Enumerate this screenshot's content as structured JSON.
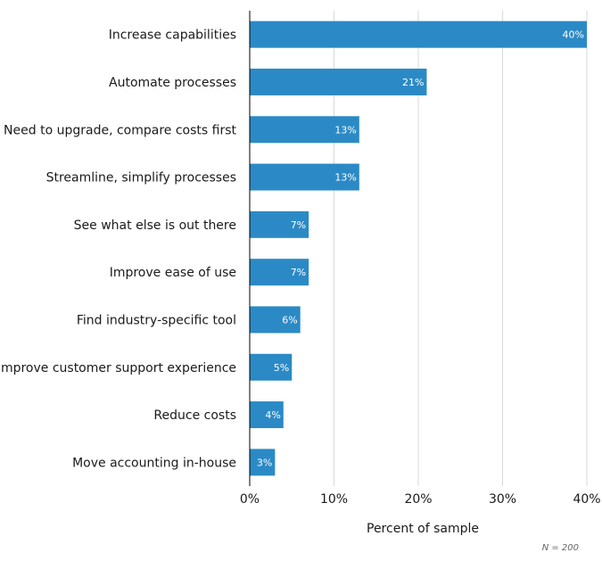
{
  "chart_data": {
    "type": "bar",
    "orientation": "horizontal",
    "categories": [
      "Increase capabilities",
      "Automate processes",
      "Need to upgrade, compare costs first",
      "Streamline, simplify processes",
      "See what else is out there",
      "Improve ease of use",
      "Find industry-specific tool",
      "Improve customer support experience",
      "Reduce costs",
      "Move accounting in-house"
    ],
    "values": [
      40,
      21,
      13,
      13,
      7,
      7,
      6,
      5,
      4,
      3
    ],
    "data_labels": [
      "40%",
      "21%",
      "13%",
      "13%",
      "7%",
      "7%",
      "6%",
      "5%",
      "4%",
      "3%"
    ],
    "xlabel": "Percent of sample",
    "ylabel": "",
    "xlim": [
      0,
      40
    ],
    "xticks": [
      0,
      10,
      20,
      30,
      40
    ],
    "xtick_labels": [
      "0%",
      "10%",
      "20%",
      "30%",
      "40%"
    ],
    "grid": true,
    "bar_color": "#2b8ac6",
    "footnote": "N = 200"
  }
}
